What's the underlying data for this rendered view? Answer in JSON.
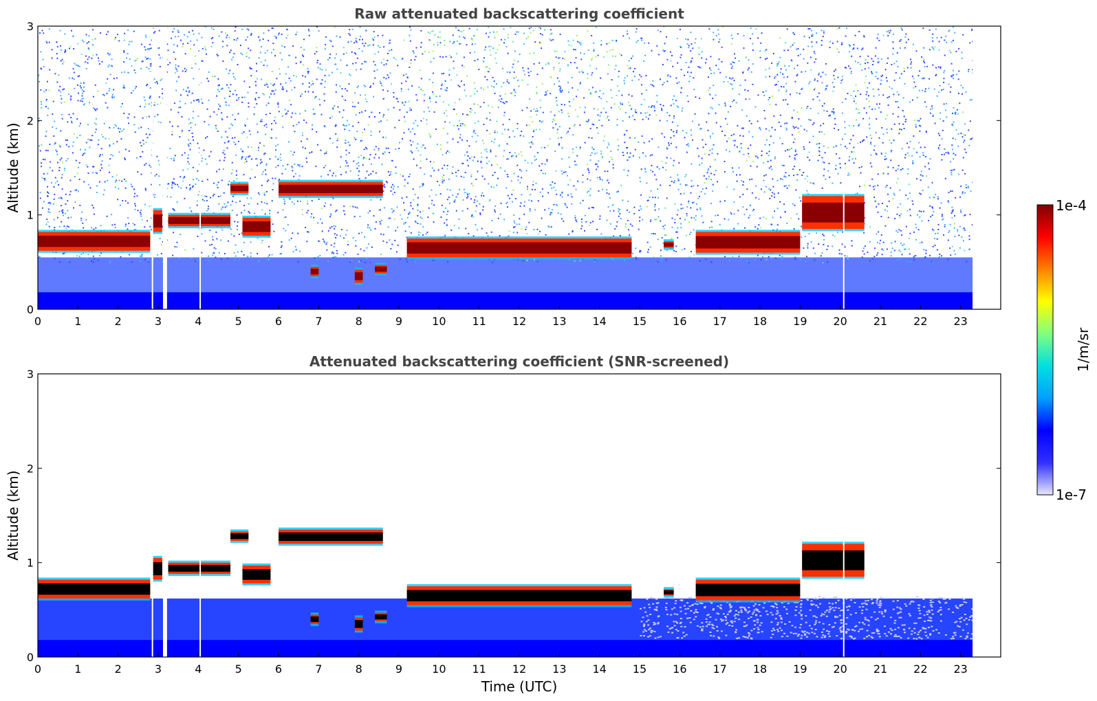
{
  "chart_data": [
    {
      "type": "heatmap",
      "title": "Raw attenuated backscattering coefficient",
      "xlabel": "",
      "ylabel": "Altitude (km)",
      "xlim": [
        0,
        24
      ],
      "ylim": [
        0,
        3
      ],
      "xticks": [
        "0",
        "1",
        "2",
        "3",
        "4",
        "5",
        "6",
        "7",
        "8",
        "9",
        "10",
        "11",
        "12",
        "13",
        "14",
        "15",
        "16",
        "17",
        "18",
        "19",
        "20",
        "21",
        "22",
        "23"
      ],
      "yticks": [
        "0",
        "1",
        "2",
        "3"
      ],
      "data_end_time": 23.3,
      "gaps": [
        [
          2.84,
          2.87
        ],
        [
          3.12,
          3.22
        ],
        [
          4.03,
          4.05
        ],
        [
          20.07,
          20.09
        ]
      ],
      "cloud_layers": [
        {
          "start": 0.0,
          "end": 2.8,
          "base_km": 0.62,
          "top_km": 0.82
        },
        {
          "start": 2.85,
          "end": 3.1,
          "base_km": 0.82,
          "top_km": 1.05
        },
        {
          "start": 3.25,
          "end": 4.8,
          "base_km": 0.88,
          "top_km": 1.0
        },
        {
          "start": 4.8,
          "end": 5.25,
          "base_km": 1.23,
          "top_km": 1.33
        },
        {
          "start": 5.1,
          "end": 5.8,
          "base_km": 0.78,
          "top_km": 0.97
        },
        {
          "start": 6.0,
          "end": 8.6,
          "base_km": 1.2,
          "top_km": 1.35
        },
        {
          "start": 6.8,
          "end": 7.0,
          "base_km": 0.35,
          "top_km": 0.45
        },
        {
          "start": 7.9,
          "end": 8.1,
          "base_km": 0.28,
          "top_km": 0.42
        },
        {
          "start": 8.4,
          "end": 8.7,
          "base_km": 0.38,
          "top_km": 0.47
        },
        {
          "start": 9.2,
          "end": 14.8,
          "base_km": 0.55,
          "top_km": 0.75
        },
        {
          "start": 15.6,
          "end": 15.85,
          "base_km": 0.65,
          "top_km": 0.72
        },
        {
          "start": 16.4,
          "end": 19.0,
          "base_km": 0.6,
          "top_km": 0.82
        },
        {
          "start": 19.05,
          "end": 20.6,
          "base_km": 0.85,
          "top_km": 1.2
        }
      ]
    },
    {
      "type": "heatmap",
      "title": "Attenuated backscattering coefficient (SNR-screened)",
      "xlabel": "Time (UTC)",
      "ylabel": "Altitude (km)",
      "xlim": [
        0,
        24
      ],
      "ylim": [
        0,
        3
      ],
      "xticks": [
        "0",
        "1",
        "2",
        "3",
        "4",
        "5",
        "6",
        "7",
        "8",
        "9",
        "10",
        "11",
        "12",
        "13",
        "14",
        "15",
        "16",
        "17",
        "18",
        "19",
        "20",
        "21",
        "22",
        "23"
      ],
      "yticks": [
        "0",
        "1",
        "2",
        "3"
      ],
      "data_end_time": 23.3
    }
  ],
  "colorbar": {
    "label": "1/m/sr",
    "max_label": "1e-4",
    "min_label": "1e-7",
    "colors": [
      "#e6e6fa",
      "#3030ff",
      "#0000ff",
      "#00a0ff",
      "#00e0e0",
      "#80ff80",
      "#ffff00",
      "#ff8000",
      "#ff0000",
      "#800000"
    ]
  }
}
